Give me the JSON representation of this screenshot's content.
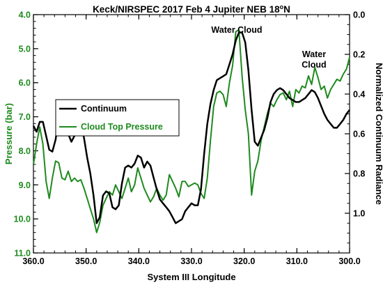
{
  "chart_data": {
    "type": "line",
    "title": "Keck/NIRSPEC 2017 Feb 4 Jupiter NEB 18",
    "title_superscript": "o",
    "title_suffix": "N",
    "xlabel": "System III Longitude",
    "ylabel_left": "Pressure (bar)",
    "ylabel_right": "Normalized Continuum Radiance",
    "xlim": [
      360.0,
      300.0
    ],
    "ylim_left": [
      4.0,
      11.0
    ],
    "ylim_right": [
      0.0,
      1.2
    ],
    "x_ticks": [
      "360.0",
      "350.0",
      "340.0",
      "330.0",
      "320.0",
      "310.0",
      "300.0"
    ],
    "y_left_ticks": [
      "4.0",
      "5.0",
      "6.0",
      "7.0",
      "8.0",
      "9.0",
      "10.0",
      "11.0"
    ],
    "y_right_ticks": [
      "0.0",
      "0.2",
      "0.4",
      "0.6",
      "0.8",
      "1.0"
    ],
    "legend": {
      "placement": "left-center",
      "entries": [
        {
          "label": "Continuum",
          "color": "#000000",
          "style": "solid"
        },
        {
          "label": "Cloud Top Pressure",
          "color": "#1e8a1e",
          "style": "solid"
        }
      ]
    },
    "annotations": [
      {
        "text": "Water Cloud",
        "x": 320.2,
        "y": 4.2
      },
      {
        "text": "Water",
        "x": 308.5,
        "y": 5.2
      },
      {
        "text": "Cloud",
        "x": 308.5,
        "y": 5.5
      }
    ],
    "colors": {
      "continuum": "#000000",
      "cloud_top_pressure": "#1e8a1e",
      "axis_left": "#1e8a1e",
      "axis": "#000000"
    },
    "series": [
      {
        "name": "Continuum",
        "axis": "right",
        "color": "#000000",
        "x": [
          360.0,
          359.4,
          358.8,
          358.2,
          357.6,
          357.0,
          356.4,
          355.8,
          355.2,
          354.6,
          354.0,
          353.4,
          352.8,
          352.2,
          351.6,
          351.0,
          350.4,
          349.8,
          349.2,
          348.6,
          348.0,
          347.4,
          346.8,
          346.2,
          345.6,
          345.0,
          344.4,
          343.8,
          343.2,
          342.6,
          342.0,
          341.4,
          340.8,
          340.2,
          339.6,
          339.0,
          338.4,
          337.8,
          337.2,
          336.6,
          336.0,
          335.4,
          334.8,
          334.2,
          333.6,
          333.0,
          332.4,
          331.8,
          331.2,
          330.6,
          330.0,
          329.4,
          328.8,
          328.2,
          327.6,
          327.0,
          326.4,
          325.8,
          325.2,
          324.6,
          324.0,
          323.4,
          322.8,
          322.2,
          321.6,
          321.0,
          320.4,
          319.8,
          319.2,
          318.6,
          318.0,
          317.4,
          316.8,
          316.2,
          315.6,
          315.0,
          314.4,
          313.8,
          313.2,
          312.6,
          312.0,
          311.4,
          310.8,
          310.2,
          309.6,
          309.0,
          308.4,
          307.8,
          307.2,
          306.6,
          306.0,
          305.4,
          304.8,
          304.2,
          303.6,
          303.0,
          302.4,
          301.8,
          301.2,
          300.6,
          300.0
        ],
        "values": [
          0.56,
          0.59,
          0.54,
          0.54,
          0.61,
          0.68,
          0.69,
          0.63,
          0.52,
          0.51,
          0.53,
          0.6,
          0.64,
          0.61,
          0.56,
          0.56,
          0.62,
          0.72,
          0.8,
          0.91,
          1.05,
          1.02,
          0.91,
          0.89,
          0.9,
          0.97,
          0.98,
          0.96,
          0.85,
          0.77,
          0.76,
          0.77,
          0.75,
          0.71,
          0.72,
          0.77,
          0.74,
          0.76,
          0.82,
          0.88,
          0.93,
          0.95,
          0.97,
          0.99,
          1.02,
          1.05,
          1.04,
          1.03,
          0.99,
          0.97,
          0.95,
          0.96,
          0.96,
          0.88,
          0.7,
          0.55,
          0.45,
          0.38,
          0.33,
          0.32,
          0.31,
          0.3,
          0.25,
          0.2,
          0.13,
          0.09,
          0.09,
          0.14,
          0.28,
          0.48,
          0.64,
          0.66,
          0.62,
          0.58,
          0.52,
          0.44,
          0.4,
          0.38,
          0.37,
          0.38,
          0.4,
          0.42,
          0.43,
          0.44,
          0.44,
          0.43,
          0.42,
          0.4,
          0.38,
          0.39,
          0.42,
          0.46,
          0.5,
          0.53,
          0.55,
          0.57,
          0.57,
          0.55,
          0.53,
          0.5,
          0.48
        ]
      },
      {
        "name": "Cloud Top Pressure",
        "axis": "left",
        "color": "#1e8a1e",
        "x": [
          360.0,
          359.4,
          358.8,
          358.2,
          357.6,
          357.0,
          356.4,
          355.8,
          355.2,
          354.6,
          354.0,
          353.4,
          352.8,
          352.2,
          351.6,
          351.0,
          350.4,
          349.8,
          349.2,
          348.6,
          348.0,
          347.4,
          346.8,
          346.2,
          345.6,
          345.0,
          344.4,
          343.8,
          343.2,
          342.6,
          342.0,
          341.4,
          340.8,
          340.2,
          339.6,
          339.0,
          338.4,
          337.8,
          337.2,
          336.6,
          336.0,
          335.4,
          334.8,
          334.2,
          333.6,
          333.0,
          332.4,
          331.8,
          331.2,
          330.6,
          330.0,
          329.4,
          328.8,
          328.2,
          327.6,
          327.0,
          326.4,
          325.8,
          325.2,
          324.6,
          324.0,
          323.4,
          322.8,
          322.2,
          321.6,
          321.0,
          320.4,
          319.8,
          319.2,
          318.6,
          318.0,
          317.4,
          316.8,
          316.2,
          315.6,
          315.0,
          314.4,
          313.8,
          313.2,
          312.6,
          312.0,
          311.4,
          310.8,
          310.2,
          309.6,
          309.0,
          308.4,
          307.8,
          307.2,
          306.6,
          306.0,
          305.4,
          304.8,
          304.2,
          303.6,
          303.0,
          302.4,
          301.8,
          301.2,
          300.6,
          300.0
        ],
        "values": [
          8.4,
          7.8,
          7.3,
          7.8,
          8.9,
          9.4,
          8.8,
          8.3,
          8.35,
          8.8,
          8.85,
          8.6,
          8.9,
          8.8,
          8.9,
          8.85,
          9.1,
          9.4,
          9.7,
          10.0,
          10.4,
          10.1,
          9.6,
          9.4,
          9.2,
          9.3,
          9.0,
          9.2,
          9.4,
          9.1,
          8.8,
          9.2,
          9.0,
          8.5,
          8.8,
          9.1,
          9.3,
          9.5,
          9.35,
          9.1,
          9.3,
          9.45,
          9.3,
          8.7,
          8.9,
          9.1,
          9.35,
          8.9,
          8.9,
          9.05,
          9.0,
          8.95,
          9.0,
          9.25,
          9.4,
          8.8,
          7.7,
          6.7,
          6.3,
          6.25,
          6.35,
          6.7,
          6.0,
          5.5,
          4.5,
          4.45,
          5.8,
          6.8,
          7.5,
          9.3,
          8.6,
          8.3,
          7.7,
          7.3,
          6.9,
          6.6,
          6.7,
          6.5,
          6.35,
          6.3,
          6.5,
          6.25,
          6.7,
          6.2,
          6.3,
          6.1,
          6.15,
          5.8,
          6.05,
          5.55,
          5.85,
          6.2,
          6.1,
          6.45,
          6.2,
          6.05,
          5.9,
          5.95,
          5.75,
          5.6,
          5.25
        ]
      }
    ]
  }
}
